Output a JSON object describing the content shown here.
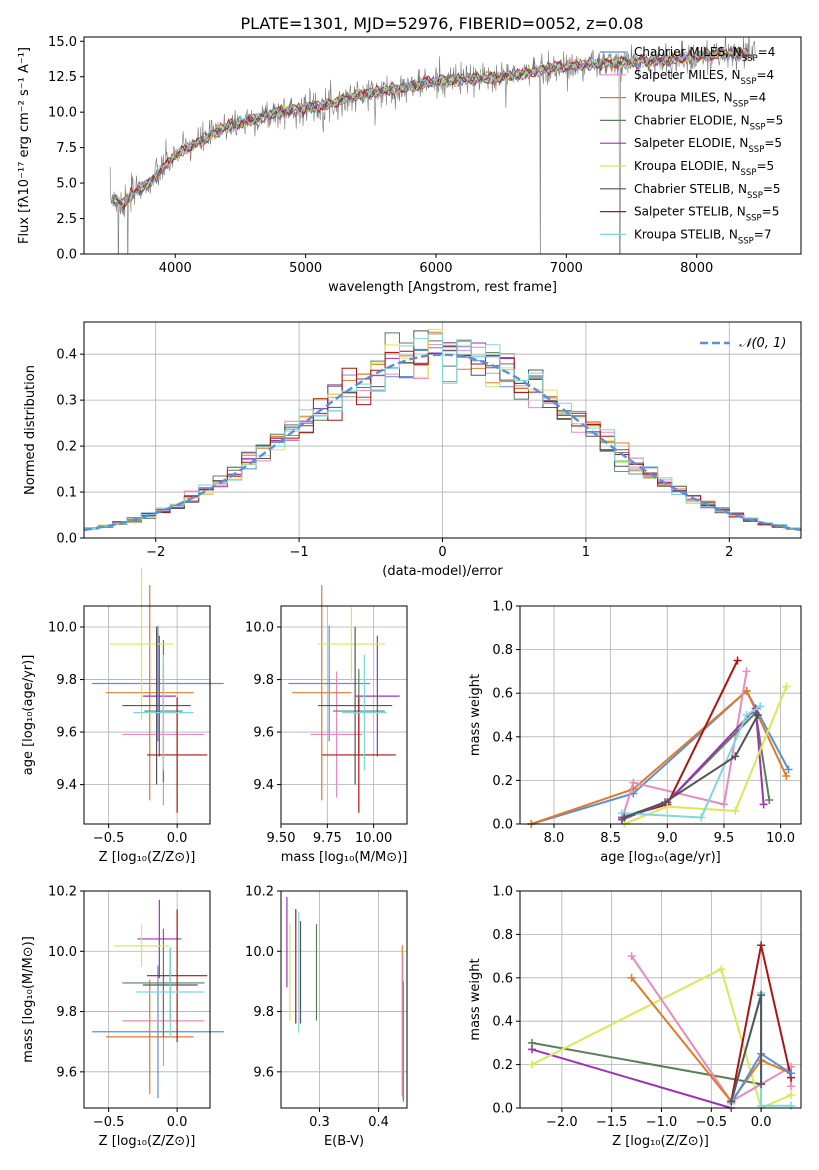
{
  "figure": {
    "title": "PLATE=1301, MJD=52976, FIBERID=0052, z=0.08"
  },
  "chart_data": [
    {
      "id": "spectrum",
      "type": "line",
      "xlabel": "wavelength [Angstrom, rest frame]",
      "ylabel": "Flux [fλ10⁻¹⁷ erg cm⁻² s⁻¹ A⁻¹]",
      "xlim": [
        3300,
        8800
      ],
      "ylim": [
        0,
        15.3
      ],
      "xticks": [
        4000,
        5000,
        6000,
        7000,
        8000
      ],
      "yticks": [
        0.0,
        2.5,
        5.0,
        7.5,
        10.0,
        12.5,
        15.0
      ],
      "grid": false,
      "legend_position": "top-right",
      "data_continuum": {
        "x": [
          3500,
          3600,
          3700,
          3800,
          3900,
          4000,
          4200,
          4400,
          4600,
          4800,
          5000,
          5200,
          5400,
          5600,
          5800,
          6000,
          6200,
          6400,
          6600,
          6800,
          7000,
          7200,
          7400,
          7600,
          7800,
          8000,
          8200,
          8400
        ],
        "y": [
          4.0,
          3.5,
          4.5,
          5.0,
          6.0,
          7.0,
          8.0,
          9.0,
          9.5,
          10.0,
          10.3,
          10.6,
          11.2,
          11.5,
          11.8,
          12.2,
          12.3,
          12.4,
          12.6,
          13.0,
          13.2,
          13.4,
          13.5,
          13.6,
          13.7,
          13.9,
          14.1,
          14.2
        ]
      },
      "series": [
        {
          "name": "Chabrier MILES, N_SSP=4",
          "label_main": "Chabrier MILES, N",
          "label_sub": "SSP",
          "label_tail": "=4",
          "color": "#5b8fd6"
        },
        {
          "name": "Salpeter MILES, N_SSP=4",
          "label_main": "Salpeter MILES, N",
          "label_sub": "SSP",
          "label_tail": "=4",
          "color": "#e88ac0"
        },
        {
          "name": "Kroupa MILES, N_SSP=4",
          "label_main": "Kroupa MILES, N",
          "label_sub": "SSP",
          "label_tail": "=4",
          "color": "#e07b2a"
        },
        {
          "name": "Chabrier ELODIE, N_SSP=5",
          "label_main": "Chabrier ELODIE, N",
          "label_sub": "SSP",
          "label_tail": "=5",
          "color": "#5a7f5a"
        },
        {
          "name": "Salpeter ELODIE, N_SSP=5",
          "label_main": "Salpeter ELODIE, N",
          "label_sub": "SSP",
          "label_tail": "=5",
          "color": "#9a35b0"
        },
        {
          "name": "Kroupa ELODIE, N_SSP=5",
          "label_main": "Kroupa ELODIE, N",
          "label_sub": "SSP",
          "label_tail": "=5",
          "color": "#d8e858"
        },
        {
          "name": "Chabrier STELIB, N_SSP=5",
          "label_main": "Chabrier STELIB, N",
          "label_sub": "SSP",
          "label_tail": "=5",
          "color": "#555555"
        },
        {
          "name": "Salpeter STELIB, N_SSP=5",
          "label_main": "Salpeter STELIB, N",
          "label_sub": "SSP",
          "label_tail": "=5",
          "color": "#aa1515"
        },
        {
          "name": "Kroupa STELIB, N_SSP=7",
          "label_main": "Kroupa STELIB, N",
          "label_sub": "SSP",
          "label_tail": "=7",
          "color": "#7ed6de"
        }
      ]
    },
    {
      "id": "residuals",
      "type": "bar",
      "xlabel": "(data-model)/error",
      "ylabel": "Normed distribution",
      "xlim": [
        -2.5,
        2.5
      ],
      "ylim": [
        0,
        0.47
      ],
      "xticks": [
        -2,
        -1,
        0,
        1,
        2
      ],
      "xtick_labels": [
        "−2",
        "−1",
        "0",
        "1",
        "2"
      ],
      "yticks": [
        0.0,
        0.1,
        0.2,
        0.3,
        0.4
      ],
      "grid": true,
      "legend_position": "top-right",
      "legend_label": "𝒩(0, 1)",
      "reference_curve": {
        "name": "N(0,1)",
        "mean": 0,
        "sigma": 1,
        "color": "#5b8fd6"
      },
      "bin_width": 0.1
    },
    {
      "id": "age_vs_Z",
      "type": "scatter",
      "xlabel": "Z [log₁₀(Z/Z⊙)]",
      "ylabel": "age  [log₁₀(age/yr)]",
      "xlim": [
        -0.68,
        0.24
      ],
      "ylim": [
        9.25,
        10.08
      ],
      "xticks": [
        -0.5,
        0.0
      ],
      "xtick_labels": [
        "−0.5",
        "0.0"
      ],
      "yticks": [
        9.4,
        9.6,
        9.8,
        10.0
      ],
      "grid": true,
      "points": [
        {
          "x": -0.14,
          "y": 9.785,
          "xerr": 0.48,
          "yerr": 0.22,
          "color": "#5b8fd6"
        },
        {
          "x": -0.1,
          "y": 9.591,
          "xerr": 0.3,
          "yerr": 0.27,
          "color": "#e88ac0"
        },
        {
          "x": -0.2,
          "y": 9.75,
          "xerr": 0.32,
          "yerr": 0.41,
          "color": "#e07b2a"
        },
        {
          "x": -0.1,
          "y": 9.68,
          "xerr": 0.14,
          "yerr": 0.27,
          "color": "#5a7f5a"
        },
        {
          "x": -0.13,
          "y": 9.737,
          "xerr": 0.12,
          "yerr": 0.23,
          "color": "#9a35b0"
        },
        {
          "x": -0.26,
          "y": 9.935,
          "xerr": 0.23,
          "yerr": 0.29,
          "color": "#d8e858"
        },
        {
          "x": -0.15,
          "y": 9.701,
          "xerr": 0.25,
          "yerr": 0.3,
          "color": "#555555"
        },
        {
          "x": 0.0,
          "y": 9.513,
          "xerr": 0.22,
          "yerr": 0.22,
          "color": "#aa1515"
        },
        {
          "x": -0.1,
          "y": 9.674,
          "xerr": 0.22,
          "yerr": 0.22,
          "color": "#7ed6de"
        }
      ]
    },
    {
      "id": "age_vs_mass",
      "type": "scatter",
      "xlabel": "mass [log₁₀(M/M⊙)]",
      "ylabel": "",
      "xlim": [
        9.5,
        10.18
      ],
      "ylim": [
        9.25,
        10.08
      ],
      "xticks": [
        9.5,
        9.75,
        10.0
      ],
      "xtick_labels": [
        "9.50",
        "9.75",
        "10.00"
      ],
      "yticks": [
        9.4,
        9.6,
        9.8,
        10.0
      ],
      "grid": true,
      "points": [
        {
          "x": 9.76,
          "y": 9.785,
          "xerr": 0.22,
          "yerr": 0.22,
          "color": "#5b8fd6"
        },
        {
          "x": 9.8,
          "y": 9.591,
          "xerr": 0.14,
          "yerr": 0.24,
          "color": "#e88ac0"
        },
        {
          "x": 9.72,
          "y": 9.75,
          "xerr": 0.16,
          "yerr": 0.41,
          "color": "#e07b2a"
        },
        {
          "x": 9.92,
          "y": 9.68,
          "xerr": 0.14,
          "yerr": 0.16,
          "color": "#5a7f5a"
        },
        {
          "x": 10.02,
          "y": 9.737,
          "xerr": 0.12,
          "yerr": 0.23,
          "color": "#9a35b0"
        },
        {
          "x": 9.88,
          "y": 9.935,
          "xerr": 0.18,
          "yerr": 0.14,
          "color": "#d8e858"
        },
        {
          "x": 9.9,
          "y": 9.701,
          "xerr": 0.2,
          "yerr": 0.3,
          "color": "#555555"
        },
        {
          "x": 9.92,
          "y": 9.513,
          "xerr": 0.2,
          "yerr": 0.22,
          "color": "#aa1515"
        },
        {
          "x": 9.95,
          "y": 9.674,
          "xerr": 0.12,
          "yerr": 0.22,
          "color": "#7ed6de"
        }
      ]
    },
    {
      "id": "weight_vs_age",
      "type": "line",
      "xlabel": "age  [log₁₀(age/yr)]",
      "ylabel": "mass weight",
      "xlim": [
        7.7,
        10.18
      ],
      "ylim": [
        0,
        1.0
      ],
      "xticks": [
        8.0,
        8.5,
        9.0,
        9.5,
        10.0
      ],
      "xtick_labels": [
        "8.0",
        "8.5",
        "9.0",
        "9.5",
        "10.0"
      ],
      "yticks": [
        0.0,
        0.2,
        0.4,
        0.6,
        0.8,
        1.0
      ],
      "grid": true,
      "series": [
        {
          "color": "#5b8fd6",
          "x": [
            7.8,
            8.7,
            9.7,
            10.07
          ],
          "y": [
            0.0,
            0.14,
            0.61,
            0.25
          ]
        },
        {
          "color": "#e07b2a",
          "x": [
            7.8,
            8.7,
            9.7,
            10.05
          ],
          "y": [
            0.0,
            0.16,
            0.61,
            0.22
          ]
        },
        {
          "color": "#e88ac0",
          "x": [
            8.6,
            8.7,
            9.5,
            9.7
          ],
          "y": [
            0.02,
            0.19,
            0.09,
            0.7
          ]
        },
        {
          "color": "#aa1515",
          "x": [
            8.6,
            9.0,
            9.62
          ],
          "y": [
            0.03,
            0.09,
            0.75
          ]
        },
        {
          "color": "#5a7f5a",
          "x": [
            8.6,
            9.0,
            9.78,
            9.9
          ],
          "y": [
            0.03,
            0.1,
            0.51,
            0.11
          ]
        },
        {
          "color": "#9a35b0",
          "x": [
            8.6,
            9.0,
            9.78,
            9.85
          ],
          "y": [
            0.02,
            0.1,
            0.53,
            0.09
          ]
        },
        {
          "color": "#d8e858",
          "x": [
            8.62,
            9.0,
            9.6,
            10.05
          ],
          "y": [
            0.0,
            0.08,
            0.06,
            0.63
          ]
        },
        {
          "color": "#7ed6de",
          "x": [
            8.6,
            9.3,
            9.7,
            9.82
          ],
          "y": [
            0.05,
            0.03,
            0.5,
            0.54
          ]
        },
        {
          "color": "#555555",
          "x": [
            8.62,
            8.98,
            9.6,
            9.8
          ],
          "y": [
            0.03,
            0.1,
            0.31,
            0.5
          ]
        }
      ]
    },
    {
      "id": "mass_vs_Z",
      "type": "scatter",
      "xlabel": "Z [log₁₀(Z/Z⊙)]",
      "ylabel": "mass [log₁₀(M/M⊙)]",
      "xlim": [
        -0.68,
        0.24
      ],
      "ylim": [
        9.48,
        10.2
      ],
      "xticks": [
        -0.5,
        0.0
      ],
      "xtick_labels": [
        "−0.5",
        "0.0"
      ],
      "yticks": [
        9.6,
        9.8,
        10.0,
        10.2
      ],
      "grid": true,
      "points": [
        {
          "x": -0.14,
          "y": 9.733,
          "xerr": 0.48,
          "yerr": 0.22,
          "color": "#5b8fd6"
        },
        {
          "x": -0.1,
          "y": 9.769,
          "xerr": 0.3,
          "yerr": 0.15,
          "color": "#e88ac0"
        },
        {
          "x": -0.2,
          "y": 9.716,
          "xerr": 0.32,
          "yerr": 0.19,
          "color": "#e07b2a"
        },
        {
          "x": -0.1,
          "y": 9.895,
          "xerr": 0.3,
          "yerr": 0.18,
          "color": "#5a7f5a"
        },
        {
          "x": -0.13,
          "y": 10.041,
          "xerr": 0.16,
          "yerr": 0.13,
          "color": "#9a35b0"
        },
        {
          "x": -0.26,
          "y": 10.018,
          "xerr": 0.2,
          "yerr": 0.07,
          "color": "#d8e858"
        },
        {
          "x": -0.05,
          "y": 9.888,
          "xerr": 0.2,
          "yerr": 0.12,
          "color": "#555555"
        },
        {
          "x": 0.0,
          "y": 9.919,
          "xerr": 0.22,
          "yerr": 0.22,
          "color": "#aa1515"
        },
        {
          "x": -0.05,
          "y": 9.865,
          "xerr": 0.25,
          "yerr": 0.15,
          "color": "#7ed6de"
        }
      ]
    },
    {
      "id": "mass_vs_EBV",
      "type": "scatter",
      "xlabel": "E(B-V)",
      "ylabel": "",
      "xlim": [
        0.235,
        0.448
      ],
      "ylim": [
        9.48,
        10.2
      ],
      "xticks": [
        0.3,
        0.4
      ],
      "xtick_labels": [
        "0.3",
        "0.4"
      ],
      "yticks": [
        9.6,
        9.8,
        10.0,
        10.2
      ],
      "grid": true,
      "points": [
        {
          "x": 0.245,
          "y": 10.03,
          "yerr": 0.15,
          "color": "#9a35b0"
        },
        {
          "x": 0.25,
          "y": 9.93,
          "yerr": 0.16,
          "color": "#d8e858"
        },
        {
          "x": 0.26,
          "y": 9.95,
          "yerr": 0.19,
          "color": "#aa1515"
        },
        {
          "x": 0.265,
          "y": 9.93,
          "yerr": 0.2,
          "color": "#7ed6de"
        },
        {
          "x": 0.268,
          "y": 9.93,
          "yerr": 0.17,
          "color": "#555555"
        },
        {
          "x": 0.295,
          "y": 9.93,
          "yerr": 0.16,
          "color": "#5a7f5a"
        },
        {
          "x": 0.44,
          "y": 9.77,
          "yerr": 0.25,
          "color": "#e07b2a"
        },
        {
          "x": 0.441,
          "y": 9.75,
          "yerr": 0.24,
          "color": "#e88ac0"
        },
        {
          "x": 0.442,
          "y": 9.7,
          "yerr": 0.2,
          "color": "#5b8fd6"
        }
      ]
    },
    {
      "id": "weight_vs_Z",
      "type": "line",
      "xlabel": "Z [log₁₀(Z/Z⊙)]",
      "ylabel": "mass weight",
      "xlim": [
        -2.42,
        0.4
      ],
      "ylim": [
        0,
        1.0
      ],
      "xticks": [
        -2.0,
        -1.5,
        -1.0,
        -0.5,
        0.0
      ],
      "xtick_labels": [
        "−2.0",
        "−1.5",
        "−1.0",
        "−0.5",
        "0.0"
      ],
      "yticks": [
        0.0,
        0.2,
        0.4,
        0.6,
        0.8,
        1.0
      ],
      "grid": true,
      "series": [
        {
          "color": "#5a7f5a",
          "x": [
            -2.3,
            0.0
          ],
          "y": [
            0.3,
            0.11
          ]
        },
        {
          "color": "#9a35b0",
          "x": [
            -2.3,
            -0.3
          ],
          "y": [
            0.27,
            0.0
          ]
        },
        {
          "color": "#d8e858",
          "x": [
            -2.3,
            -0.4,
            0.0,
            0.3
          ],
          "y": [
            0.2,
            0.64,
            0.0,
            0.06
          ]
        },
        {
          "color": "#e88ac0",
          "x": [
            -1.3,
            -0.3,
            0.3,
            0.3
          ],
          "y": [
            0.7,
            0.03,
            0.19,
            0.1
          ]
        },
        {
          "color": "#e07b2a",
          "x": [
            -1.3,
            -0.3,
            0.0,
            0.3
          ],
          "y": [
            0.6,
            0.03,
            0.22,
            0.16
          ]
        },
        {
          "color": "#aa1515",
          "x": [
            -0.3,
            0.0,
            0.3
          ],
          "y": [
            0.03,
            0.75,
            0.14
          ]
        },
        {
          "color": "#5b8fd6",
          "x": [
            -0.3,
            0.0,
            0.3
          ],
          "y": [
            0.02,
            0.25,
            0.16
          ]
        },
        {
          "color": "#7ed6de",
          "x": [
            -0.3,
            0.0,
            0.0,
            0.3
          ],
          "y": [
            0.02,
            0.53,
            0.01,
            0.01
          ]
        },
        {
          "color": "#555555",
          "x": [
            -0.3,
            0.0,
            0.0
          ],
          "y": [
            0.03,
            0.52,
            0.11
          ]
        }
      ]
    }
  ]
}
